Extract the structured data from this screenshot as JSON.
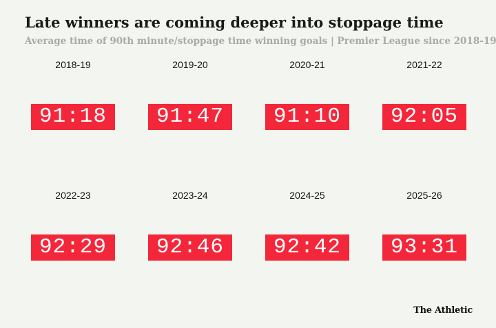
{
  "header": {
    "title": "Late winners are coming deeper into stoppage time",
    "subtitle": "Average time of 90th minute/stoppage time winning goals | Premier League since 2018-19"
  },
  "items": [
    {
      "season": "2018-19",
      "time": "91:18"
    },
    {
      "season": "2019-20",
      "time": "91:47"
    },
    {
      "season": "2020-21",
      "time": "91:10"
    },
    {
      "season": "2021-22",
      "time": "92:05"
    },
    {
      "season": "2022-23",
      "time": "92:29"
    },
    {
      "season": "2023-24",
      "time": "92:46"
    },
    {
      "season": "2024-25",
      "time": "92:42"
    },
    {
      "season": "2025-26",
      "time": "93:31"
    }
  ],
  "footer": {
    "credit": "The Athletic"
  }
}
